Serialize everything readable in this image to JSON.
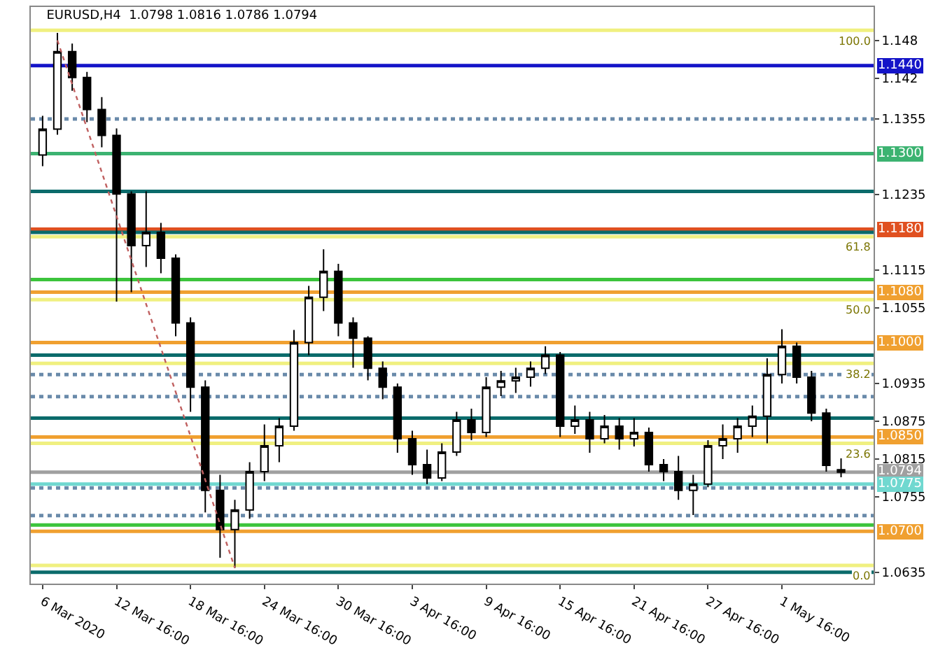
{
  "chart_data": {
    "type": "candlestick",
    "title": "EURUSD,H4  1.0798 1.0816 1.0786 1.0794",
    "categories": [
      "6 Mar 2020",
      null,
      null,
      null,
      null,
      "12 Mar 16:00",
      null,
      null,
      null,
      null,
      "18 Mar 16:00",
      null,
      null,
      null,
      null,
      "24 Mar 16:00",
      null,
      null,
      null,
      null,
      "30 Mar 16:00",
      null,
      null,
      null,
      null,
      "3 Apr 16:00",
      null,
      null,
      null,
      null,
      "9 Apr 16:00",
      null,
      null,
      null,
      null,
      "15 Apr 16:00",
      null,
      null,
      null,
      null,
      "21 Apr 16:00",
      null,
      null,
      null,
      null,
      "27 Apr 16:00",
      null,
      null,
      null,
      null,
      "1 May 16:00",
      null,
      null,
      null,
      null
    ],
    "color": "#000000",
    "ohlc": [
      [
        1.1298,
        1.136,
        1.128,
        1.1339
      ],
      [
        1.1339,
        1.1492,
        1.133,
        1.1462
      ],
      [
        1.1462,
        1.1475,
        1.14,
        1.1421
      ],
      [
        1.1421,
        1.143,
        1.135,
        1.137
      ],
      [
        1.137,
        1.139,
        1.131,
        1.1329
      ],
      [
        1.1329,
        1.134,
        1.1065,
        1.1236
      ],
      [
        1.1236,
        1.124,
        1.108,
        1.1154
      ],
      [
        1.1154,
        1.124,
        1.112,
        1.1175
      ],
      [
        1.1175,
        1.119,
        1.111,
        1.1134
      ],
      [
        1.1134,
        1.114,
        1.101,
        1.1031
      ],
      [
        1.1031,
        1.104,
        1.089,
        1.0929
      ],
      [
        1.0929,
        1.094,
        1.073,
        1.0765
      ],
      [
        1.0765,
        1.079,
        1.0658,
        1.0703
      ],
      [
        1.0703,
        1.075,
        1.0642,
        1.0734
      ],
      [
        1.0734,
        1.081,
        1.072,
        1.0795
      ],
      [
        1.0795,
        1.087,
        1.078,
        1.0836
      ],
      [
        1.0836,
        1.088,
        1.081,
        1.0867
      ],
      [
        1.0867,
        1.102,
        1.086,
        1.1
      ],
      [
        1.1,
        1.109,
        1.098,
        1.1072
      ],
      [
        1.1072,
        1.1148,
        1.105,
        1.1113
      ],
      [
        1.1113,
        1.1125,
        1.101,
        1.1031
      ],
      [
        1.1031,
        1.104,
        1.096,
        1.1007
      ],
      [
        1.1007,
        1.101,
        1.094,
        1.0959
      ],
      [
        1.0959,
        1.097,
        1.091,
        1.0929
      ],
      [
        1.0929,
        1.0935,
        1.0825,
        1.0847
      ],
      [
        1.0847,
        1.086,
        1.079,
        1.0806
      ],
      [
        1.0806,
        1.083,
        1.0775,
        1.0785
      ],
      [
        1.0785,
        1.084,
        1.078,
        1.0826
      ],
      [
        1.0826,
        1.089,
        1.082,
        1.0877
      ],
      [
        1.0877,
        1.0895,
        1.0845,
        1.0857
      ],
      [
        1.0857,
        1.0945,
        1.085,
        1.0929
      ],
      [
        1.0929,
        1.0955,
        1.0915,
        1.0939
      ],
      [
        1.0939,
        1.096,
        1.092,
        1.0945
      ],
      [
        1.0945,
        1.097,
        1.093,
        1.0959
      ],
      [
        1.0959,
        1.0994,
        1.095,
        1.098
      ],
      [
        1.098,
        1.0985,
        1.085,
        1.0867
      ],
      [
        1.0867,
        1.09,
        1.0855,
        1.0877
      ],
      [
        1.0877,
        1.089,
        1.0825,
        1.0847
      ],
      [
        1.0847,
        1.0885,
        1.084,
        1.0867
      ],
      [
        1.0867,
        1.088,
        1.083,
        1.0847
      ],
      [
        1.0847,
        1.088,
        1.0835,
        1.0857
      ],
      [
        1.0857,
        1.0865,
        1.0795,
        1.0806
      ],
      [
        1.0806,
        1.0815,
        1.078,
        1.0795
      ],
      [
        1.0795,
        1.082,
        1.075,
        1.0765
      ],
      [
        1.0765,
        1.079,
        1.0726,
        1.0775
      ],
      [
        1.0775,
        1.0845,
        1.077,
        1.0836
      ],
      [
        1.0836,
        1.087,
        1.0815,
        1.0847
      ],
      [
        1.0847,
        1.088,
        1.0825,
        1.0867
      ],
      [
        1.0867,
        1.09,
        1.085,
        1.0883
      ],
      [
        1.0883,
        1.0975,
        1.084,
        1.0949
      ],
      [
        1.0949,
        1.1021,
        1.0935,
        1.0994
      ],
      [
        1.0994,
        1.1,
        1.0935,
        1.0945
      ],
      [
        1.0945,
        1.0955,
        1.0875,
        1.0888
      ],
      [
        1.0888,
        1.0895,
        1.0795,
        1.0805
      ],
      [
        1.0798,
        1.0816,
        1.0786,
        1.0794
      ]
    ],
    "series": [
      {
        "type": "line",
        "color": "#c06060",
        "line_style": "dotted",
        "values": [
          null,
          1.148,
          null,
          null,
          null,
          null,
          null,
          null,
          null,
          null,
          null,
          null,
          null,
          1.0642,
          null,
          null,
          null,
          null,
          null,
          null,
          null,
          null,
          null,
          null,
          null,
          null,
          null,
          null,
          null,
          null,
          null,
          null,
          null,
          null,
          null,
          null,
          null,
          null,
          null,
          null,
          null,
          null,
          null,
          null,
          null,
          null,
          null,
          null,
          null,
          null,
          null,
          null,
          null,
          null,
          null
        ]
      }
    ],
    "ylim": [
      1.0617,
      1.1533
    ],
    "yticks": [
      1.148,
      1.142,
      1.1355,
      1.1235,
      1.1115,
      1.1055,
      1.0935,
      1.0875,
      1.0815,
      1.0755,
      1.0635
    ],
    "ref_lines": [
      {
        "axis": "y",
        "value": 1.1496,
        "color": "#f0f080",
        "line_style": "solid"
      },
      {
        "axis": "y",
        "value": 1.144,
        "label": "1.1440",
        "color": "#1414c8",
        "line_style": "solid"
      },
      {
        "axis": "y",
        "value": 1.1355,
        "color": "#6a8aaa",
        "line_style": "dotted"
      },
      {
        "axis": "y",
        "value": 1.13,
        "label": "1.1300",
        "color": "#3cb371",
        "line_style": "solid"
      },
      {
        "axis": "y",
        "value": 1.124,
        "color": "#0b6b6b",
        "line_style": "solid"
      },
      {
        "axis": "y",
        "value": 1.118,
        "label": "1.1180",
        "color": "#e05020",
        "line_style": "solid"
      },
      {
        "axis": "y",
        "value": 1.1175,
        "color": "#0b6b6b",
        "line_style": "solid"
      },
      {
        "axis": "y",
        "value": 1.1168,
        "color": "#f0f080",
        "line_style": "solid"
      },
      {
        "axis": "y",
        "value": 1.11,
        "color": "#3cc43c",
        "line_style": "solid"
      },
      {
        "axis": "y",
        "value": 1.108,
        "label": "1.1080",
        "color": "#f0a030",
        "line_style": "solid"
      },
      {
        "axis": "y",
        "value": 1.1068,
        "color": "#f0f080",
        "line_style": "solid"
      },
      {
        "axis": "y",
        "value": 1.1,
        "label": "1.1000",
        "color": "#f0a030",
        "line_style": "solid"
      },
      {
        "axis": "y",
        "value": 1.098,
        "color": "#0b6b6b",
        "line_style": "solid"
      },
      {
        "axis": "y",
        "value": 1.0967,
        "color": "#f0f080",
        "line_style": "solid"
      },
      {
        "axis": "y",
        "value": 1.0949,
        "color": "#6a8aaa",
        "line_style": "dotted"
      },
      {
        "axis": "y",
        "value": 1.0914,
        "color": "#6a8aaa",
        "line_style": "dotted"
      },
      {
        "axis": "y",
        "value": 1.088,
        "color": "#0b6b6b",
        "line_style": "solid"
      },
      {
        "axis": "y",
        "value": 1.085,
        "label": "1.0850",
        "color": "#f0a030",
        "line_style": "solid"
      },
      {
        "axis": "y",
        "value": 1.084,
        "color": "#f0f080",
        "line_style": "solid"
      },
      {
        "axis": "y",
        "value": 1.0794,
        "label": "1.0794",
        "color": "#a0a0a0",
        "line_style": "solid"
      },
      {
        "axis": "y",
        "value": 1.0775,
        "label": "1.0775",
        "color": "#70d8d0",
        "line_style": "solid"
      },
      {
        "axis": "y",
        "value": 1.0769,
        "color": "#6a8aaa",
        "line_style": "dotted"
      },
      {
        "axis": "y",
        "value": 1.0725,
        "color": "#6a8aaa",
        "line_style": "dotted"
      },
      {
        "axis": "y",
        "value": 1.071,
        "color": "#3cc43c",
        "line_style": "solid"
      },
      {
        "axis": "y",
        "value": 1.07,
        "label": "1.0700",
        "color": "#f0a030",
        "line_style": "solid"
      },
      {
        "axis": "y",
        "value": 1.0646,
        "color": "#f0f080",
        "line_style": "solid"
      },
      {
        "axis": "y",
        "value": 1.0635,
        "color": "#0b6b6b",
        "line_style": "solid"
      }
    ],
    "annotations": [
      {
        "text": "100.0",
        "y": 1.1496
      },
      {
        "text": "61.8",
        "y": 1.1168
      },
      {
        "text": "50.0",
        "y": 1.1068
      },
      {
        "text": "38.2",
        "y": 1.0967
      },
      {
        "text": "23.6",
        "y": 1.084
      },
      {
        "text": "0.0",
        "y": 1.0646
      }
    ],
    "grid": false
  }
}
